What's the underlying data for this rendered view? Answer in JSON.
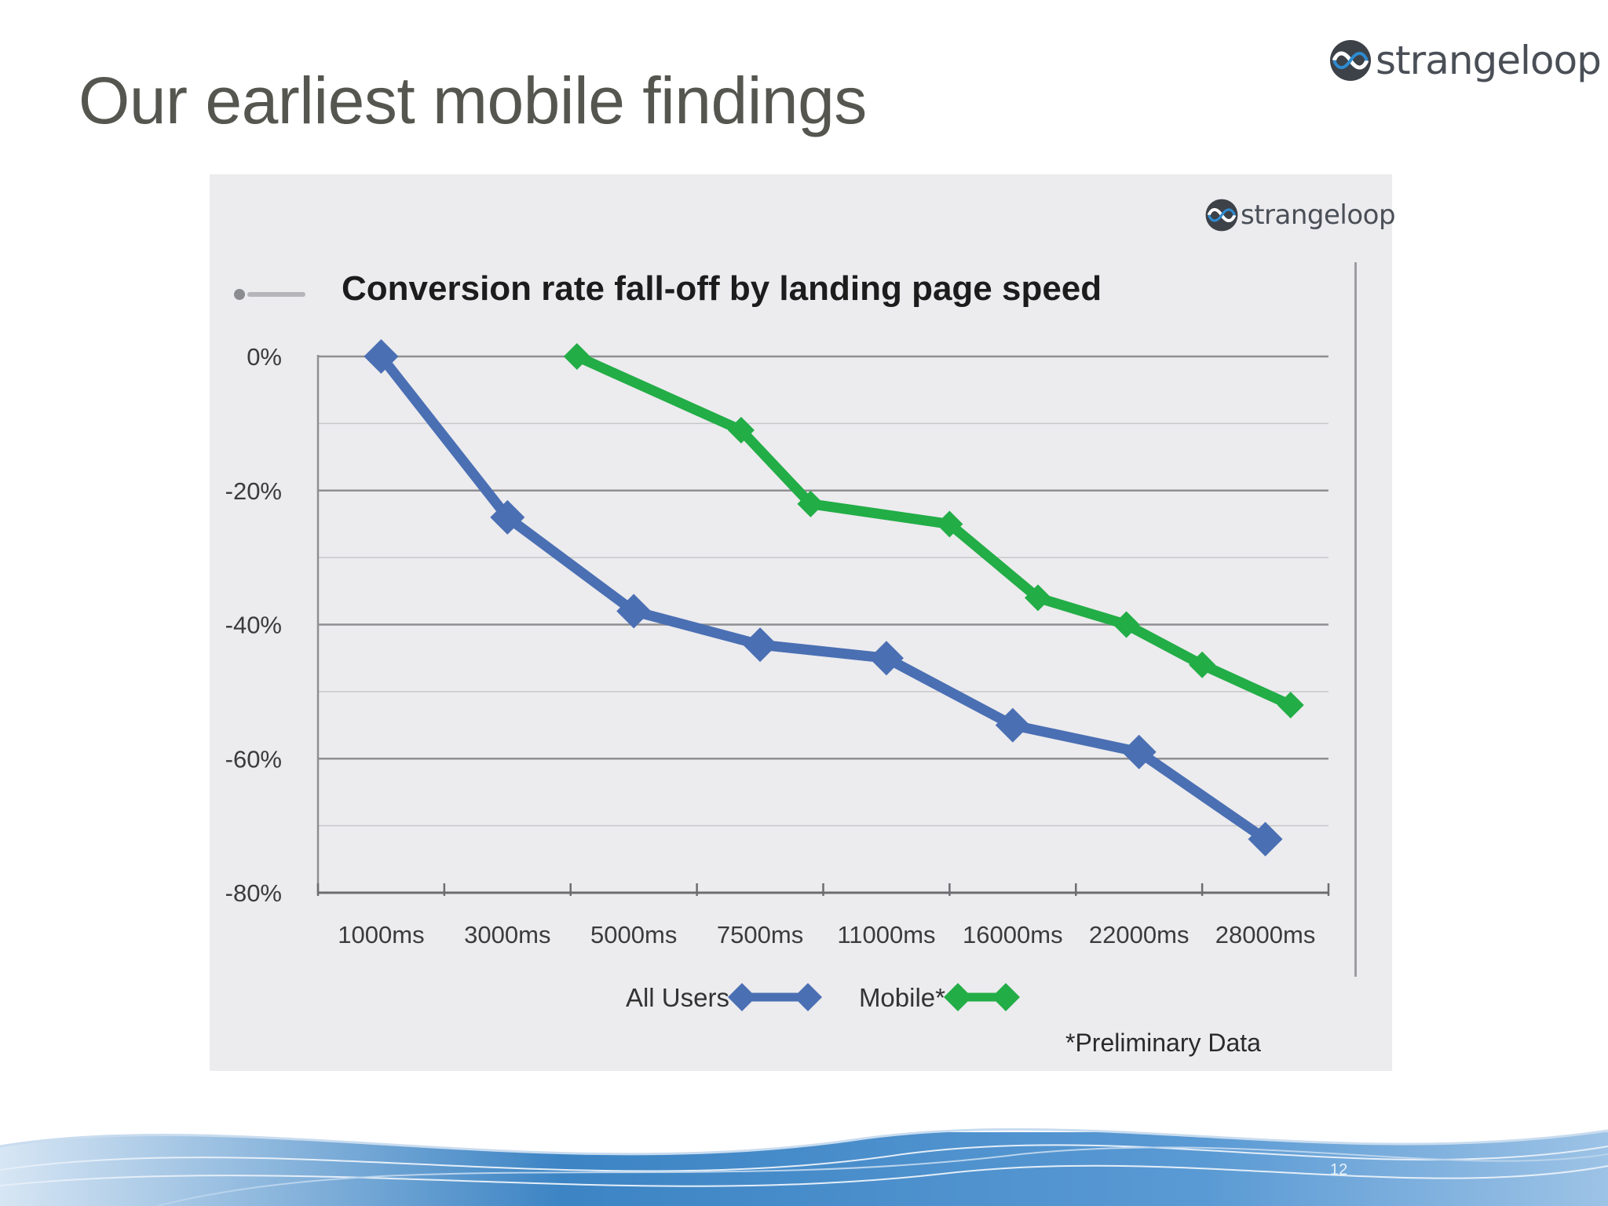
{
  "slide": {
    "title": "Our earliest mobile findings",
    "logo_text": "strangeloop",
    "page_number": "12"
  },
  "chart_panel": {
    "logo_text": "strangeloop"
  },
  "colors": {
    "all_users": "#4a6fb3",
    "mobile": "#22ad46",
    "title": "#55564f",
    "panel_background": "#ecebee"
  },
  "chart_data": {
    "type": "line",
    "title": "Conversion rate fall-off by landing page speed",
    "xlabel": "",
    "ylabel": "",
    "categories": [
      "1000ms",
      "3000ms",
      "5000ms",
      "7500ms",
      "11000ms",
      "16000ms",
      "22000ms",
      "28000ms"
    ],
    "y_ticks": [
      "0%",
      "-20%",
      "-40%",
      "-60%",
      "-80%"
    ],
    "ylim": [
      -80,
      0
    ],
    "grid": true,
    "legend_position": "bottom",
    "series": [
      {
        "name": "All Users",
        "color": "#4a6fb3",
        "points": [
          {
            "x": 1,
            "y": 0
          },
          {
            "x": 2,
            "y": -24
          },
          {
            "x": 3,
            "y": -38
          },
          {
            "x": 4,
            "y": -43
          },
          {
            "x": 5,
            "y": -45
          },
          {
            "x": 6,
            "y": -55
          },
          {
            "x": 7,
            "y": -59
          },
          {
            "x": 8,
            "y": -72
          }
        ]
      },
      {
        "name": "Mobile*",
        "color": "#22ad46",
        "points": [
          {
            "x": 2.55,
            "y": 0
          },
          {
            "x": 3.85,
            "y": -11
          },
          {
            "x": 4.4,
            "y": -22
          },
          {
            "x": 5.5,
            "y": -25
          },
          {
            "x": 6.2,
            "y": -36
          },
          {
            "x": 6.9,
            "y": -40
          },
          {
            "x": 7.5,
            "y": -46
          },
          {
            "x": 8.2,
            "y": -52
          }
        ]
      }
    ],
    "note": "*Preliminary Data"
  }
}
